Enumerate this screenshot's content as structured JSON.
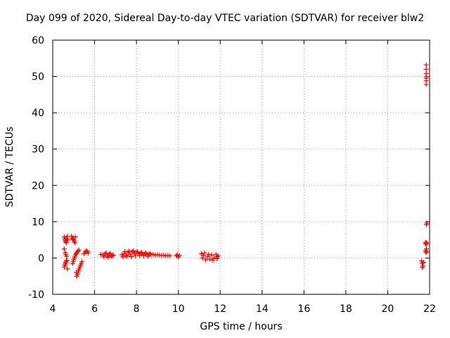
{
  "chart_data": {
    "type": "scatter",
    "title": "Day 099 of 2020, Sidereal Day-to-day VTEC variation (SDTVAR) for receiver blw2",
    "xlabel": "GPS time / hours",
    "ylabel": "SDTVAR / TECUs",
    "xlim": [
      4,
      22
    ],
    "ylim": [
      -10,
      60
    ],
    "xticks": [
      4,
      6,
      8,
      10,
      12,
      14,
      16,
      18,
      20,
      22
    ],
    "yticks": [
      -10,
      0,
      10,
      20,
      30,
      40,
      50,
      60
    ],
    "xtick_labels": [
      "4",
      "6",
      "8",
      "10",
      "12",
      "14",
      "16",
      "18",
      "20",
      "22"
    ],
    "ytick_labels": [
      "-10",
      "0",
      "10",
      "20",
      "30",
      "40",
      "50",
      "60"
    ],
    "grid": true,
    "marker": "plus",
    "color": "#ff0000",
    "series": [
      {
        "x": [
          4.55,
          4.58,
          4.6,
          4.62,
          4.65,
          4.68,
          4.7,
          4.72,
          4.55,
          4.58,
          4.6,
          4.62,
          4.65,
          4.68,
          4.55,
          4.6,
          4.62,
          4.66,
          4.7,
          4.9,
          4.93,
          4.96,
          5.0,
          5.03,
          5.06,
          5.08,
          4.95,
          4.98,
          5.0,
          5.03,
          5.06,
          5.1,
          5.13,
          5.16,
          5.2,
          5.25,
          5.12,
          5.15,
          5.18,
          5.2,
          5.23,
          5.26,
          5.3,
          5.33,
          5.36,
          5.4,
          5.5,
          5.55,
          5.6,
          5.65,
          5.7,
          6.3,
          6.4,
          6.5,
          6.6,
          6.7,
          6.8,
          6.9,
          6.45,
          6.55,
          6.65,
          6.75,
          6.85,
          7.3,
          7.4,
          7.5,
          7.6,
          7.7,
          7.8,
          7.9,
          8.0,
          8.1,
          8.2,
          8.3,
          8.4,
          8.5,
          8.6,
          8.7,
          8.8,
          8.9,
          9.0,
          9.1,
          9.2,
          9.3,
          9.4,
          9.5,
          9.6,
          7.35,
          7.45,
          7.55,
          7.65,
          7.75,
          7.85,
          7.95,
          8.05,
          8.15,
          8.25,
          8.35,
          8.45,
          8.55,
          8.65,
          9.9,
          9.95,
          10.0,
          10.05,
          11.1,
          11.15,
          11.2,
          11.3,
          11.4,
          11.5,
          11.6,
          11.7,
          11.8,
          11.85,
          11.9,
          11.25,
          11.45,
          11.65,
          11.85,
          21.62,
          21.65,
          21.68,
          21.7,
          21.65,
          21.8,
          21.82,
          21.84,
          21.86,
          21.8,
          21.83,
          21.85,
          21.87,
          21.85,
          21.87,
          21.84,
          21.84,
          21.84,
          21.84,
          21.84,
          21.84,
          21.84
        ],
        "y": [
          5.8,
          5.2,
          4.8,
          4.5,
          4.2,
          5.5,
          6.0,
          5.0,
          -2.5,
          -2.0,
          -1.6,
          -1.2,
          -0.9,
          -0.6,
          2.5,
          1.5,
          1.0,
          0.5,
          -3.0,
          6.0,
          5.5,
          5.2,
          5.0,
          4.6,
          4.2,
          5.8,
          -1.5,
          -1.0,
          -0.5,
          0.0,
          0.5,
          1.0,
          1.3,
          1.6,
          1.9,
          2.2,
          -4.0,
          -5.0,
          -4.5,
          -4.0,
          -3.5,
          -3.0,
          -2.5,
          -2.0,
          -1.5,
          -1.0,
          1.2,
          1.6,
          2.0,
          1.8,
          1.4,
          1.0,
          0.8,
          1.2,
          0.6,
          1.0,
          0.5,
          0.8,
          0.3,
          1.4,
          0.2,
          1.3,
          0.6,
          0.9,
          1.2,
          0.7,
          1.5,
          1.0,
          1.7,
          1.3,
          1.6,
          1.2,
          1.4,
          1.1,
          1.2,
          1.0,
          1.1,
          0.9,
          1.0,
          0.8,
          0.9,
          0.8,
          0.7,
          0.8,
          0.6,
          0.7,
          0.6,
          0.3,
          1.8,
          0.5,
          1.9,
          0.4,
          2.0,
          0.6,
          1.7,
          0.7,
          1.5,
          0.6,
          1.4,
          0.5,
          1.2,
          0.6,
          0.9,
          0.3,
          0.7,
          1.2,
          0.0,
          0.8,
          -0.5,
          0.4,
          -0.3,
          0.8,
          0.0,
          1.0,
          0.3,
          0.6,
          1.4,
          1.0,
          -0.6,
          -0.2,
          -0.8,
          -1.5,
          -2.2,
          -1.2,
          -2.6,
          4.2,
          3.8,
          4.3,
          4.0,
          2.0,
          1.5,
          2.5,
          1.8,
          9.2,
          9.6,
          53.2,
          52.0,
          50.8,
          50.0,
          49.5,
          48.8,
          47.8
        ]
      }
    ]
  }
}
